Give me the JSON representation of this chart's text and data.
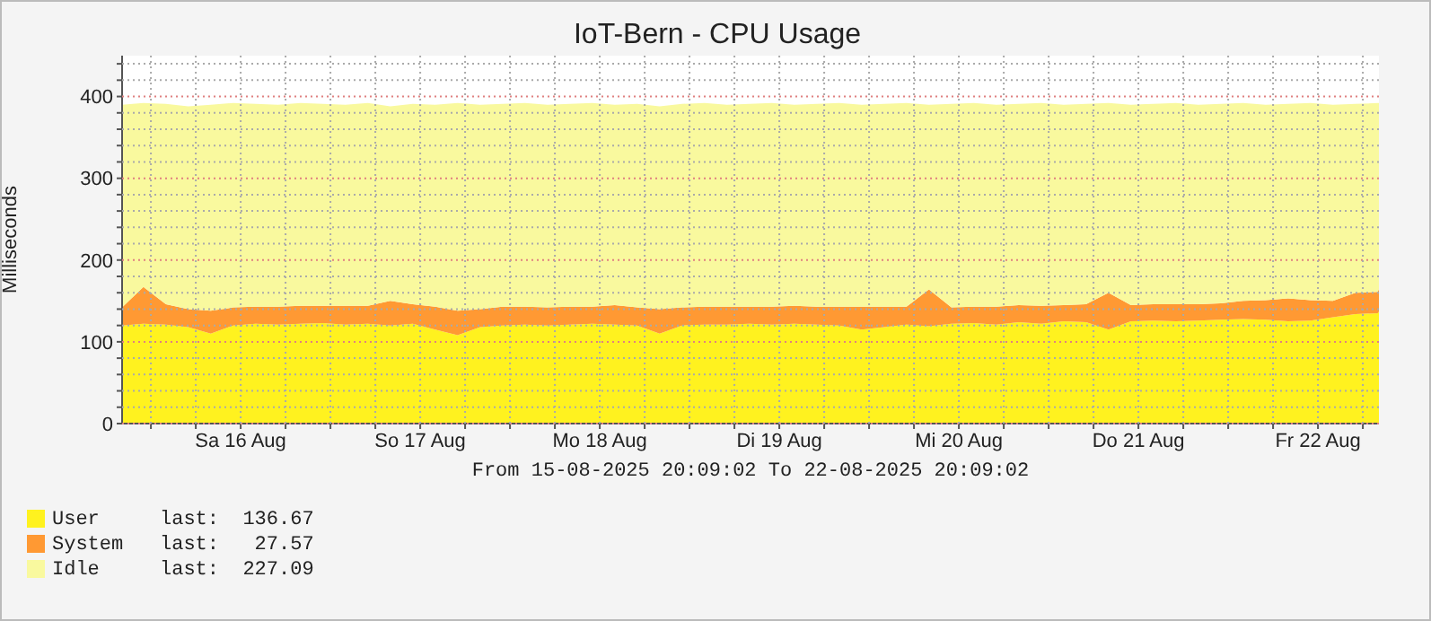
{
  "chart_data": {
    "type": "area",
    "title": "IoT-Bern - CPU Usage",
    "ylabel": "Milliseconds",
    "stacked": true,
    "grid": true,
    "legend": "bottom left",
    "annotations": [
      "From 15-08-2025 20:09:02 To 22-08-2025 20:09:02",
      "last:  136.67",
      "last:   27.57",
      "last:  227.09"
    ],
    "xlim": [
      "2025-08-15T20:09",
      "2025-08-22T20:09"
    ],
    "xticks": [
      {
        "value": "2025-08-16T00:00",
        "label": null
      },
      {
        "value": "2025-08-16T06:00",
        "label": null
      },
      {
        "value": "2025-08-16T12:00",
        "label": "Sa 16 Aug"
      },
      {
        "value": "2025-08-16T18:00",
        "label": null
      },
      {
        "value": "2025-08-17T00:00",
        "label": null
      },
      {
        "value": "2025-08-17T06:00",
        "label": null
      },
      {
        "value": "2025-08-17T12:00",
        "label": "So 17 Aug"
      },
      {
        "value": "2025-08-17T18:00",
        "label": null
      },
      {
        "value": "2025-08-18T00:00",
        "label": null
      },
      {
        "value": "2025-08-18T06:00",
        "label": null
      },
      {
        "value": "2025-08-18T12:00",
        "label": "Mo 18 Aug"
      },
      {
        "value": "2025-08-18T18:00",
        "label": null
      },
      {
        "value": "2025-08-19T00:00",
        "label": null
      },
      {
        "value": "2025-08-19T06:00",
        "label": null
      },
      {
        "value": "2025-08-19T12:00",
        "label": "Di 19 Aug"
      },
      {
        "value": "2025-08-19T18:00",
        "label": null
      },
      {
        "value": "2025-08-20T00:00",
        "label": null
      },
      {
        "value": "2025-08-20T06:00",
        "label": null
      },
      {
        "value": "2025-08-20T12:00",
        "label": "Mi 20 Aug"
      },
      {
        "value": "2025-08-20T18:00",
        "label": null
      },
      {
        "value": "2025-08-21T00:00",
        "label": null
      },
      {
        "value": "2025-08-21T06:00",
        "label": null
      },
      {
        "value": "2025-08-21T12:00",
        "label": "Do 21 Aug"
      },
      {
        "value": "2025-08-21T18:00",
        "label": null
      },
      {
        "value": "2025-08-22T00:00",
        "label": null
      },
      {
        "value": "2025-08-22T06:00",
        "label": null
      },
      {
        "value": "2025-08-22T12:00",
        "label": "Fr 22 Aug"
      },
      {
        "value": "2025-08-22T18:00",
        "label": null
      }
    ],
    "ylim": [
      0,
      450
    ],
    "yticks": [
      0,
      {
        "value": 20,
        "label": null
      },
      {
        "value": 40,
        "label": null
      },
      {
        "value": 60,
        "label": null
      },
      {
        "value": 80,
        "label": null
      },
      100,
      {
        "value": 120,
        "label": null
      },
      {
        "value": 140,
        "label": null
      },
      {
        "value": 160,
        "label": null
      },
      {
        "value": 180,
        "label": null
      },
      200,
      {
        "value": 220,
        "label": null
      },
      {
        "value": 240,
        "label": null
      },
      {
        "value": 260,
        "label": null
      },
      {
        "value": 280,
        "label": null
      },
      300,
      {
        "value": 320,
        "label": null
      },
      {
        "value": 340,
        "label": null
      },
      {
        "value": 360,
        "label": null
      },
      {
        "value": 380,
        "label": null
      },
      400,
      {
        "value": 420,
        "label": null
      },
      {
        "value": 440,
        "label": null
      }
    ],
    "x": [
      "2025-08-15T20:09",
      "2025-08-15T23:00",
      "2025-08-16T02:00",
      "2025-08-16T05:00",
      "2025-08-16T08:00",
      "2025-08-16T11:00",
      "2025-08-16T14:00",
      "2025-08-16T17:00",
      "2025-08-16T20:00",
      "2025-08-16T23:00",
      "2025-08-17T02:00",
      "2025-08-17T05:00",
      "2025-08-17T08:00",
      "2025-08-17T11:00",
      "2025-08-17T14:00",
      "2025-08-17T17:00",
      "2025-08-17T20:00",
      "2025-08-17T23:00",
      "2025-08-18T02:00",
      "2025-08-18T05:00",
      "2025-08-18T08:00",
      "2025-08-18T11:00",
      "2025-08-18T14:00",
      "2025-08-18T17:00",
      "2025-08-18T20:00",
      "2025-08-18T23:00",
      "2025-08-19T02:00",
      "2025-08-19T05:00",
      "2025-08-19T08:00",
      "2025-08-19T11:00",
      "2025-08-19T14:00",
      "2025-08-19T17:00",
      "2025-08-19T20:00",
      "2025-08-19T23:00",
      "2025-08-20T02:00",
      "2025-08-20T05:00",
      "2025-08-20T08:00",
      "2025-08-20T11:00",
      "2025-08-20T14:00",
      "2025-08-20T17:00",
      "2025-08-20T20:00",
      "2025-08-20T23:00",
      "2025-08-21T02:00",
      "2025-08-21T05:00",
      "2025-08-21T08:00",
      "2025-08-21T11:00",
      "2025-08-21T14:00",
      "2025-08-21T17:00",
      "2025-08-21T20:00",
      "2025-08-21T23:00",
      "2025-08-22T02:00",
      "2025-08-22T05:00",
      "2025-08-22T08:00",
      "2025-08-22T11:00",
      "2025-08-22T14:00",
      "2025-08-22T17:00",
      "2025-08-22T20:00",
      "2025-08-22T20:09"
    ],
    "series": [
      {
        "name": "User",
        "color": "#fff21f",
        "values": [
          120,
          122,
          121,
          118,
          110,
          120,
          122,
          121,
          122,
          123,
          121,
          122,
          120,
          122,
          115,
          108,
          118,
          120,
          121,
          120,
          121,
          122,
          121,
          120,
          110,
          120,
          121,
          121,
          122,
          121,
          122,
          121,
          120,
          115,
          118,
          121,
          119,
          122,
          123,
          121,
          124,
          122,
          125,
          124,
          115,
          125,
          126,
          125,
          126,
          127,
          128,
          127,
          125,
          126,
          130,
          134,
          135,
          137
        ]
      },
      {
        "name": "System",
        "color": "#ff9933",
        "values": [
          22,
          45,
          25,
          22,
          28,
          22,
          21,
          22,
          22,
          21,
          23,
          22,
          30,
          24,
          28,
          30,
          22,
          23,
          22,
          22,
          22,
          21,
          24,
          22,
          30,
          22,
          22,
          22,
          21,
          22,
          22,
          22,
          23,
          28,
          25,
          22,
          45,
          20,
          20,
          22,
          21,
          22,
          20,
          22,
          45,
          20,
          20,
          21,
          20,
          20,
          22,
          24,
          28,
          25,
          20,
          26,
          26,
          28
        ]
      },
      {
        "name": "Idle",
        "color": "#f9f99e",
        "values": [
          248,
          225,
          245,
          248,
          252,
          250,
          248,
          247,
          248,
          247,
          246,
          248,
          238,
          245,
          247,
          254,
          250,
          248,
          249,
          248,
          248,
          249,
          245,
          249,
          248,
          249,
          249,
          247,
          248,
          249,
          246,
          248,
          249,
          247,
          248,
          249,
          226,
          249,
          249,
          247,
          246,
          248,
          245,
          245,
          232,
          245,
          245,
          246,
          244,
          244,
          242,
          239,
          238,
          241,
          240,
          231,
          231,
          227
        ]
      }
    ]
  }
}
